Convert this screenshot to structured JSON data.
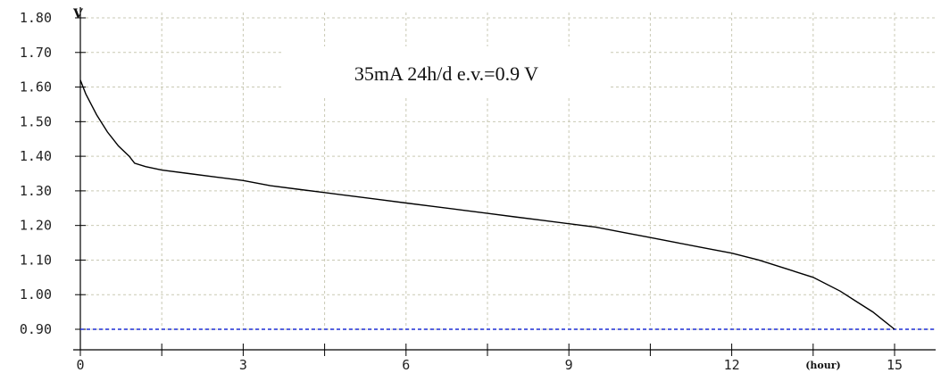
{
  "chart_data": {
    "type": "line",
    "title": "35mA 24h/d e.v.=0.9 V",
    "ylabel": "V",
    "xlabel": "(hour)",
    "xlim": [
      0,
      15.5
    ],
    "ylim": [
      0.9,
      1.8
    ],
    "x_ticks": [
      0,
      3,
      6,
      9,
      12,
      15
    ],
    "y_ticks": [
      "0.90",
      "1.00",
      "1.10",
      "1.20",
      "1.30",
      "1.40",
      "1.50",
      "1.60",
      "1.70",
      "1.80"
    ],
    "grid": true,
    "cutoff_voltage": 0.9,
    "series": [
      {
        "color": "#000000",
        "x": [
          0,
          0.1,
          0.3,
          0.5,
          0.7,
          0.9,
          1.0,
          1.2,
          1.5,
          2.0,
          2.5,
          3.0,
          3.5,
          4.0,
          4.5,
          5.0,
          5.5,
          6.0,
          6.5,
          7.0,
          7.5,
          8.0,
          8.5,
          9.0,
          9.5,
          10.0,
          10.5,
          11.0,
          11.5,
          12.0,
          12.5,
          13.0,
          13.5,
          14.0,
          14.3,
          14.6,
          14.8,
          15.0
        ],
        "y": [
          1.62,
          1.58,
          1.52,
          1.47,
          1.43,
          1.4,
          1.38,
          1.37,
          1.36,
          1.35,
          1.34,
          1.33,
          1.315,
          1.305,
          1.295,
          1.285,
          1.275,
          1.265,
          1.255,
          1.245,
          1.235,
          1.225,
          1.215,
          1.205,
          1.195,
          1.18,
          1.165,
          1.15,
          1.135,
          1.12,
          1.1,
          1.075,
          1.05,
          1.01,
          0.98,
          0.95,
          0.925,
          0.9
        ]
      }
    ],
    "cutoff_line_color": "#1f2fd6",
    "grid_color": "#c9c9b4",
    "title_box_color": "#ffffff"
  }
}
